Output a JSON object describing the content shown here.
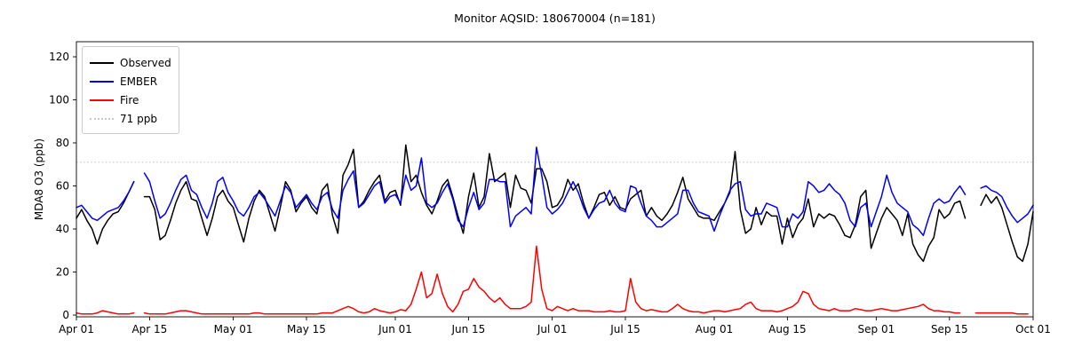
{
  "header": {
    "title": "Monitor AQSID: 180670004 (n=181)"
  },
  "axes": {
    "ylabel": "MDA8 O3 (ppb)",
    "yticks": [
      0,
      20,
      40,
      60,
      80,
      100,
      120
    ],
    "xticks": [
      {
        "day": 0,
        "label": "Apr 01"
      },
      {
        "day": 14,
        "label": "Apr 15"
      },
      {
        "day": 30,
        "label": "May 01"
      },
      {
        "day": 44,
        "label": "May 15"
      },
      {
        "day": 61,
        "label": "Jun 01"
      },
      {
        "day": 75,
        "label": "Jun 15"
      },
      {
        "day": 91,
        "label": "Jul 01"
      },
      {
        "day": 105,
        "label": "Jul 15"
      },
      {
        "day": 122,
        "label": "Aug 01"
      },
      {
        "day": 136,
        "label": "Aug 15"
      },
      {
        "day": 153,
        "label": "Sep 01"
      },
      {
        "day": 167,
        "label": "Sep 15"
      },
      {
        "day": 183,
        "label": "Oct 01"
      }
    ]
  },
  "legend": {
    "items": [
      {
        "key": "observed",
        "label": "Observed",
        "color": "#000000",
        "style": "solid"
      },
      {
        "key": "ember",
        "label": "EMBER",
        "color": "#0000ff",
        "style": "solid"
      },
      {
        "key": "fire",
        "label": "Fire",
        "color": "#ff0000",
        "style": "solid"
      },
      {
        "key": "threshold",
        "label": "71 ppb",
        "color": "#c8c8c8",
        "style": "dotted"
      }
    ]
  },
  "chart_data": {
    "type": "line",
    "title": "Monitor AQSID: 180670004 (n=181)",
    "xlabel": "",
    "ylabel": "MDA8 O3 (ppb)",
    "x_unit": "days since Apr 01 (daily values, Apr 01 - Oct 01)",
    "x_range_days": 183,
    "ylim": [
      -1,
      127
    ],
    "grid": false,
    "legend_position": "upper left",
    "reference_line": {
      "y": 71,
      "label": "71 ppb",
      "style": "dotted",
      "color": "#c8c8c8"
    },
    "note": "nulls = missing days (n=181 of 184)",
    "series": [
      {
        "name": "Observed",
        "color": "#000000",
        "style": "solid",
        "values": [
          45,
          49,
          44,
          40,
          33,
          40,
          44,
          47,
          48,
          52,
          57,
          62,
          null,
          55,
          55,
          49,
          35,
          37,
          44,
          52,
          58,
          62,
          54,
          53,
          45,
          37,
          45,
          55,
          58,
          53,
          50,
          42,
          34,
          45,
          53,
          58,
          55,
          47,
          39,
          50,
          62,
          58,
          48,
          52,
          55,
          50,
          47,
          58,
          61,
          46,
          38,
          65,
          70,
          77,
          50,
          53,
          58,
          62,
          65,
          53,
          57,
          58,
          51,
          79,
          62,
          65,
          57,
          51,
          47,
          53,
          60,
          63,
          55,
          46,
          38,
          55,
          66,
          50,
          55,
          75,
          62,
          64,
          66,
          50,
          65,
          59,
          58,
          52,
          68,
          68,
          62,
          50,
          51,
          55,
          63,
          58,
          61,
          52,
          45,
          50,
          56,
          57,
          51,
          55,
          50,
          49,
          54,
          56,
          58,
          46,
          50,
          46,
          44,
          47,
          51,
          57,
          64,
          54,
          50,
          46,
          45,
          45,
          44,
          48,
          52,
          57,
          76,
          49,
          38,
          40,
          50,
          42,
          48,
          46,
          46,
          33,
          45,
          36,
          42,
          45,
          54,
          41,
          47,
          45,
          47,
          46,
          42,
          37,
          36,
          42,
          55,
          58,
          31,
          38,
          45,
          50,
          47,
          44,
          37,
          47,
          33,
          28,
          25,
          32,
          36,
          49,
          45,
          47,
          52,
          53,
          45,
          null,
          null,
          51,
          56,
          52,
          55,
          50,
          42,
          34,
          27,
          25,
          33,
          48
        ]
      },
      {
        "name": "EMBER",
        "color": "#0000ff",
        "style": "solid",
        "values": [
          50,
          51,
          48,
          45,
          44,
          46,
          48,
          49,
          50,
          53,
          57,
          62,
          null,
          66,
          62,
          53,
          45,
          47,
          52,
          58,
          63,
          65,
          58,
          56,
          50,
          45,
          52,
          62,
          64,
          57,
          53,
          48,
          46,
          50,
          55,
          57,
          54,
          50,
          46,
          53,
          60,
          57,
          50,
          53,
          56,
          52,
          49,
          55,
          57,
          49,
          45,
          58,
          63,
          67,
          50,
          52,
          56,
          60,
          62,
          52,
          55,
          56,
          52,
          65,
          58,
          60,
          73,
          52,
          50,
          52,
          57,
          61,
          54,
          44,
          41,
          50,
          57,
          49,
          52,
          63,
          63,
          62,
          62,
          41,
          46,
          48,
          50,
          47,
          78,
          65,
          50,
          47,
          49,
          52,
          57,
          62,
          57,
          50,
          45,
          49,
          52,
          53,
          58,
          52,
          49,
          48,
          60,
          59,
          52,
          46,
          44,
          41,
          41,
          43,
          45,
          47,
          58,
          58,
          52,
          48,
          47,
          46,
          39,
          46,
          52,
          58,
          61,
          62,
          49,
          46,
          47,
          47,
          52,
          51,
          50,
          41,
          41,
          47,
          45,
          48,
          62,
          60,
          57,
          58,
          61,
          58,
          56,
          52,
          44,
          41,
          50,
          52,
          41,
          48,
          55,
          65,
          57,
          52,
          50,
          48,
          42,
          40,
          37,
          45,
          52,
          54,
          52,
          53,
          57,
          60,
          56,
          null,
          null,
          59,
          60,
          58,
          57,
          55,
          50,
          46,
          43,
          45,
          47,
          51
        ]
      },
      {
        "name": "Fire",
        "color": "#ff0000",
        "style": "solid",
        "values": [
          1,
          0.5,
          0.5,
          0.5,
          1,
          2,
          1.5,
          1,
          0.5,
          0.5,
          0.5,
          1,
          null,
          1,
          0.5,
          0.5,
          0.5,
          0.5,
          1,
          1.5,
          2,
          2,
          1.5,
          1,
          0.5,
          0.5,
          0.5,
          0.5,
          0.5,
          0.5,
          0.5,
          0.5,
          0.5,
          0.5,
          1,
          1,
          0.5,
          0.5,
          0.5,
          0.5,
          0.5,
          0.5,
          0.5,
          0.5,
          0.5,
          0.5,
          0.5,
          1,
          1,
          1,
          2,
          3,
          4,
          3,
          1.5,
          1,
          1.5,
          3,
          2,
          1.5,
          1,
          1.5,
          2.5,
          2,
          5,
          12,
          20,
          8,
          10,
          19,
          10,
          4,
          1.5,
          5,
          11,
          12,
          17,
          13,
          11,
          8,
          6,
          8,
          5,
          3,
          3,
          3,
          4,
          6,
          32,
          12,
          3,
          2,
          4,
          3,
          2,
          3,
          2,
          2,
          2,
          1.5,
          1.5,
          1.5,
          2,
          1.5,
          1.5,
          2,
          17,
          6,
          3,
          2,
          2.5,
          2,
          1.5,
          1.5,
          3,
          5,
          3,
          2,
          1.5,
          1.5,
          1,
          1.5,
          2,
          2,
          1.5,
          2,
          2.5,
          3,
          5,
          6,
          3,
          2,
          2,
          2,
          1.5,
          2,
          3,
          4,
          6,
          11,
          10,
          5,
          3,
          2.5,
          2,
          3,
          2,
          2,
          2,
          3,
          2.5,
          2,
          2,
          2.5,
          3,
          2.5,
          2,
          2,
          2.5,
          3,
          3.5,
          4,
          5,
          3,
          2,
          2,
          1.5,
          1.5,
          1,
          1,
          null,
          null,
          1,
          1,
          1,
          1,
          1,
          1,
          1,
          1,
          0.5,
          0.5,
          0.5
        ]
      }
    ]
  }
}
